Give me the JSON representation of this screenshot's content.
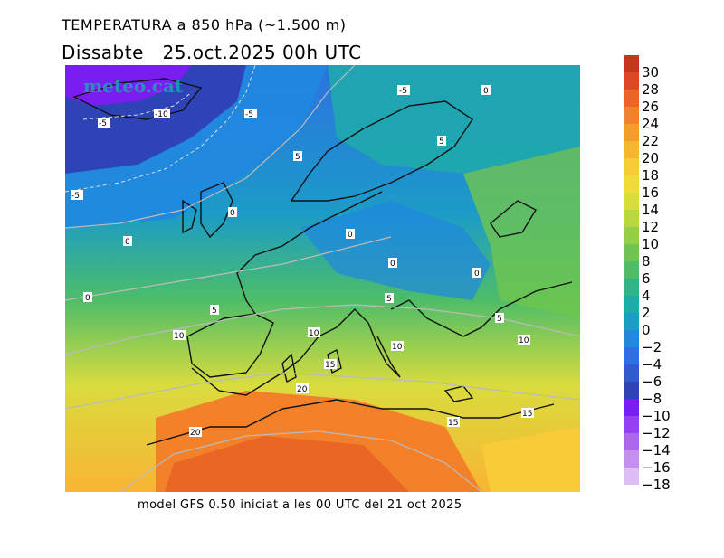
{
  "title": "TEMPERATURA a 850 hPa (~1.500 m)",
  "subtitle": "Dissabte   25.oct.2025 00h UTC",
  "footer": "model GFS 0.50 iniciat a les 00 UTC del 21 oct 2025",
  "logo": "meteo.cat",
  "legend": {
    "levels": [
      {
        "value": "30",
        "color": "#c0391b"
      },
      {
        "value": "28",
        "color": "#d94a20"
      },
      {
        "value": "26",
        "color": "#ea6624"
      },
      {
        "value": "24",
        "color": "#f2812a"
      },
      {
        "value": "22",
        "color": "#f79b2f"
      },
      {
        "value": "20",
        "color": "#f9b433"
      },
      {
        "value": "18",
        "color": "#f8cc38"
      },
      {
        "value": "16",
        "color": "#f0da3c"
      },
      {
        "value": "14",
        "color": "#d9dc3e"
      },
      {
        "value": "12",
        "color": "#b7d640"
      },
      {
        "value": "10",
        "color": "#94cf44"
      },
      {
        "value": "8",
        "color": "#6fc64e"
      },
      {
        "value": "6",
        "color": "#4dbd68"
      },
      {
        "value": "4",
        "color": "#30b589"
      },
      {
        "value": "2",
        "color": "#1fabaa"
      },
      {
        "value": "0",
        "color": "#1c9cc7"
      },
      {
        "value": "−2",
        "color": "#2088df"
      },
      {
        "value": "−4",
        "color": "#2b72e0"
      },
      {
        "value": "−6",
        "color": "#2f5bcf"
      },
      {
        "value": "−8",
        "color": "#2d43b6"
      },
      {
        "value": "−10",
        "color": "#7a1df0"
      },
      {
        "value": "−12",
        "color": "#9640f0"
      },
      {
        "value": "−14",
        "color": "#ad66ee"
      },
      {
        "value": "−16",
        "color": "#c58ef0"
      },
      {
        "value": "−18",
        "color": "#ddbdf5"
      }
    ]
  },
  "contour_labels": [
    "-5",
    "0",
    "-10",
    "-5",
    "-5",
    "5",
    "-5",
    "0",
    "0",
    "0",
    "5",
    "0",
    "0",
    "0",
    "5",
    "5",
    "5",
    "10",
    "10",
    "10",
    "15",
    "20",
    "20",
    "15",
    "15",
    "10"
  ]
}
